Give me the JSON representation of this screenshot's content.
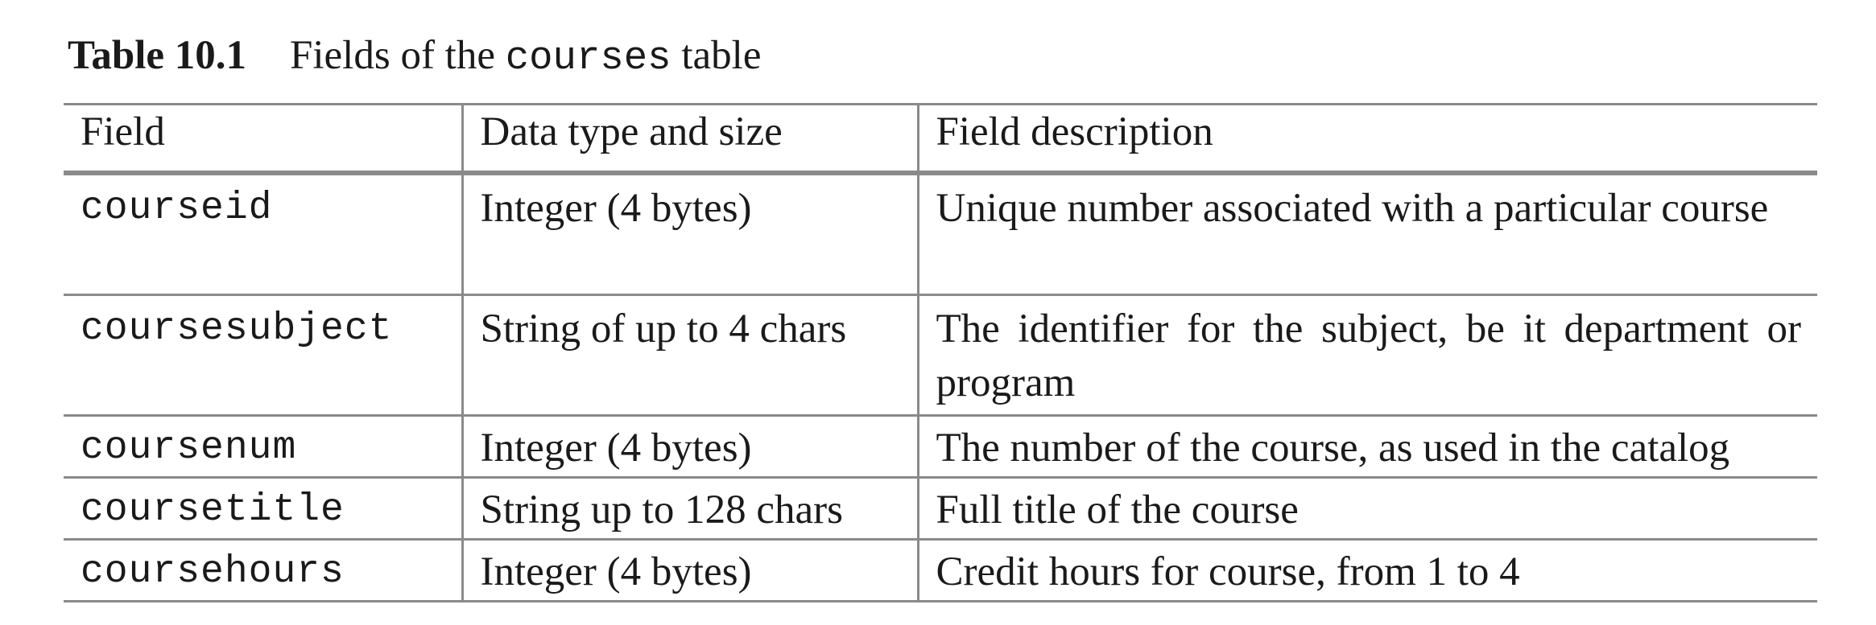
{
  "caption": {
    "label": "Table 10.1",
    "text_before": "Fields of the ",
    "table_name": "courses",
    "text_after": " table"
  },
  "table": {
    "headers": [
      "Field",
      "Data type and size",
      "Field description"
    ],
    "rows": [
      {
        "field": "courseid",
        "type": "Integer (4 bytes)",
        "description": "Unique number associated with a particular course"
      },
      {
        "field": "coursesubject",
        "type": "String of up to 4 chars",
        "description": "The identifier for the subject, be it department or program"
      },
      {
        "field": "coursenum",
        "type": "Integer (4 bytes)",
        "description": "The number of the course, as used in the catalog"
      },
      {
        "field": "coursetitle",
        "type": "String up to 128 chars",
        "description": "Full title of the course"
      },
      {
        "field": "coursehours",
        "type": "Integer (4 bytes)",
        "description": "Credit hours for course, from 1 to 4"
      }
    ]
  }
}
